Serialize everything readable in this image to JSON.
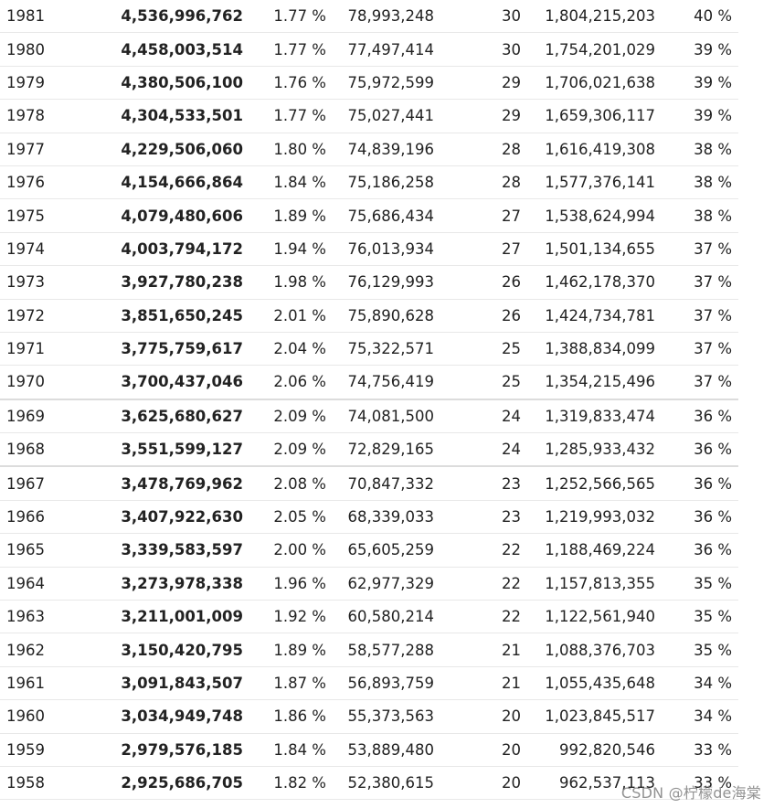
{
  "rows": [
    {
      "year": "1981",
      "population": "4,536,996,762",
      "rate": "1.77 %",
      "change": "78,993,248",
      "density": "30",
      "urban": "1,804,215,203",
      "urban_pct": "40 %"
    },
    {
      "year": "1980",
      "population": "4,458,003,514",
      "rate": "1.77 %",
      "change": "77,497,414",
      "density": "30",
      "urban": "1,754,201,029",
      "urban_pct": "39 %"
    },
    {
      "year": "1979",
      "population": "4,380,506,100",
      "rate": "1.76 %",
      "change": "75,972,599",
      "density": "29",
      "urban": "1,706,021,638",
      "urban_pct": "39 %"
    },
    {
      "year": "1978",
      "population": "4,304,533,501",
      "rate": "1.77 %",
      "change": "75,027,441",
      "density": "29",
      "urban": "1,659,306,117",
      "urban_pct": "39 %"
    },
    {
      "year": "1977",
      "population": "4,229,506,060",
      "rate": "1.80 %",
      "change": "74,839,196",
      "density": "28",
      "urban": "1,616,419,308",
      "urban_pct": "38 %"
    },
    {
      "year": "1976",
      "population": "4,154,666,864",
      "rate": "1.84 %",
      "change": "75,186,258",
      "density": "28",
      "urban": "1,577,376,141",
      "urban_pct": "38 %"
    },
    {
      "year": "1975",
      "population": "4,079,480,606",
      "rate": "1.89 %",
      "change": "75,686,434",
      "density": "27",
      "urban": "1,538,624,994",
      "urban_pct": "38 %"
    },
    {
      "year": "1974",
      "population": "4,003,794,172",
      "rate": "1.94 %",
      "change": "76,013,934",
      "density": "27",
      "urban": "1,501,134,655",
      "urban_pct": "37 %"
    },
    {
      "year": "1973",
      "population": "3,927,780,238",
      "rate": "1.98 %",
      "change": "76,129,993",
      "density": "26",
      "urban": "1,462,178,370",
      "urban_pct": "37 %"
    },
    {
      "year": "1972",
      "population": "3,851,650,245",
      "rate": "2.01 %",
      "change": "75,890,628",
      "density": "26",
      "urban": "1,424,734,781",
      "urban_pct": "37 %"
    },
    {
      "year": "1971",
      "population": "3,775,759,617",
      "rate": "2.04 %",
      "change": "75,322,571",
      "density": "25",
      "urban": "1,388,834,099",
      "urban_pct": "37 %"
    },
    {
      "year": "1970",
      "population": "3,700,437,046",
      "rate": "2.06 %",
      "change": "74,756,419",
      "density": "25",
      "urban": "1,354,215,496",
      "urban_pct": "37 %"
    },
    {
      "year": "1969",
      "population": "3,625,680,627",
      "rate": "2.09 %",
      "change": "74,081,500",
      "density": "24",
      "urban": "1,319,833,474",
      "urban_pct": "36 %"
    },
    {
      "year": "1968",
      "population": "3,551,599,127",
      "rate": "2.09 %",
      "change": "72,829,165",
      "density": "24",
      "urban": "1,285,933,432",
      "urban_pct": "36 %"
    },
    {
      "year": "1967",
      "population": "3,478,769,962",
      "rate": "2.08 %",
      "change": "70,847,332",
      "density": "23",
      "urban": "1,252,566,565",
      "urban_pct": "36 %"
    },
    {
      "year": "1966",
      "population": "3,407,922,630",
      "rate": "2.05 %",
      "change": "68,339,033",
      "density": "23",
      "urban": "1,219,993,032",
      "urban_pct": "36 %"
    },
    {
      "year": "1965",
      "population": "3,339,583,597",
      "rate": "2.00 %",
      "change": "65,605,259",
      "density": "22",
      "urban": "1,188,469,224",
      "urban_pct": "36 %"
    },
    {
      "year": "1964",
      "population": "3,273,978,338",
      "rate": "1.96 %",
      "change": "62,977,329",
      "density": "22",
      "urban": "1,157,813,355",
      "urban_pct": "35 %"
    },
    {
      "year": "1963",
      "population": "3,211,001,009",
      "rate": "1.92 %",
      "change": "60,580,214",
      "density": "22",
      "urban": "1,122,561,940",
      "urban_pct": "35 %"
    },
    {
      "year": "1962",
      "population": "3,150,420,795",
      "rate": "1.89 %",
      "change": "58,577,288",
      "density": "21",
      "urban": "1,088,376,703",
      "urban_pct": "35 %"
    },
    {
      "year": "1961",
      "population": "3,091,843,507",
      "rate": "1.87 %",
      "change": "56,893,759",
      "density": "21",
      "urban": "1,055,435,648",
      "urban_pct": "34 %"
    },
    {
      "year": "1960",
      "population": "3,034,949,748",
      "rate": "1.86 %",
      "change": "55,373,563",
      "density": "20",
      "urban": "1,023,845,517",
      "urban_pct": "34 %"
    },
    {
      "year": "1959",
      "population": "2,979,576,185",
      "rate": "1.84 %",
      "change": "53,889,480",
      "density": "20",
      "urban": "992,820,546",
      "urban_pct": "33 %"
    },
    {
      "year": "1958",
      "population": "2,925,686,705",
      "rate": "1.82 %",
      "change": "52,380,615",
      "density": "20",
      "urban": "962,537,113",
      "urban_pct": "33 %"
    }
  ],
  "watermark": "CSDN @柠檬de海棠"
}
